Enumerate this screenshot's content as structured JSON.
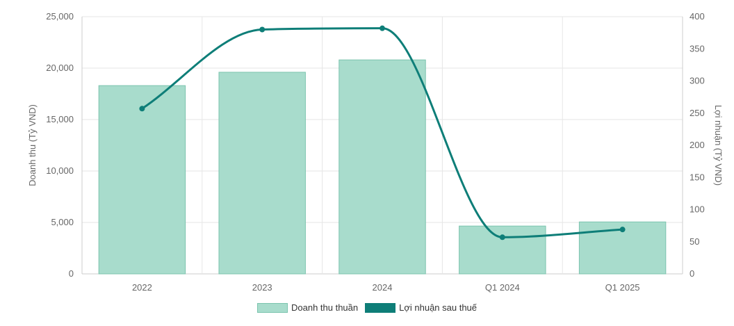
{
  "chart_data": {
    "type": "bar",
    "categories": [
      "2022",
      "2023",
      "2024",
      "Q1 2024",
      "Q1 2025"
    ],
    "series": [
      {
        "name": "Doanh thu thuần",
        "kind": "bar",
        "axis": "left",
        "values": [
          18300,
          19600,
          20800,
          4650,
          5050
        ],
        "fill": "#a8dccc",
        "stroke": "#7cc4ae"
      },
      {
        "name": "Lợi nhuận sau thuế",
        "kind": "line",
        "axis": "right",
        "values": [
          257,
          380,
          382,
          57,
          69
        ],
        "color": "#0e7e78"
      }
    ],
    "y_left": {
      "label": "Doanh thu (Tỷ VND)",
      "range": [
        0,
        25000
      ],
      "ticks": [
        0,
        5000,
        10000,
        15000,
        20000,
        25000
      ],
      "tick_labels": [
        "0",
        "5,000",
        "10,000",
        "15,000",
        "20,000",
        "25,000"
      ]
    },
    "y_right": {
      "label": "Lợi nhuận (Tỷ VND)",
      "range": [
        0,
        400
      ],
      "ticks": [
        0,
        50,
        100,
        150,
        200,
        250,
        300,
        350,
        400
      ],
      "tick_labels": [
        "0",
        "50",
        "100",
        "150",
        "200",
        "250",
        "300",
        "350",
        "400"
      ]
    },
    "grid": true,
    "legend_position": "bottom"
  }
}
